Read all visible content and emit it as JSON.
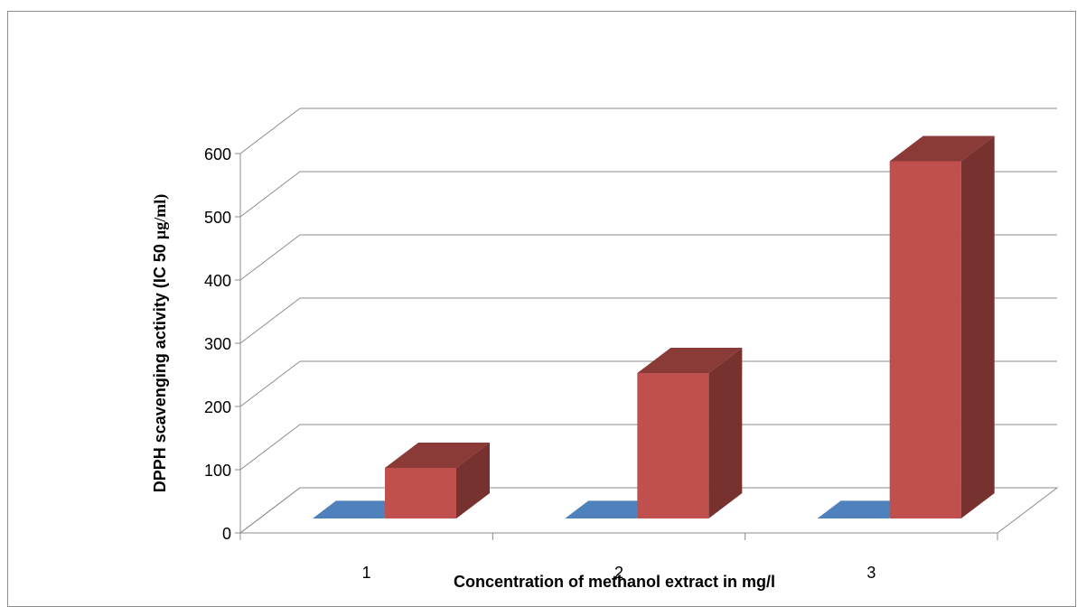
{
  "chart_data": {
    "type": "bar",
    "categories": [
      "1",
      "2",
      "3"
    ],
    "series": [
      {
        "values": [
          0,
          0,
          0
        ],
        "color": "#4f81bd"
      },
      {
        "values": [
          80,
          230,
          565
        ],
        "color": "#c0504d"
      }
    ],
    "xlabel": "Concentration of methanol extract in mg/l",
    "ylabel": "DPPH scavenging activity (IC 50 µg/ml)",
    "ylim": [
      0,
      600
    ],
    "yticks": [
      0,
      100,
      200,
      300,
      400,
      500,
      600
    ],
    "grid": true,
    "style": "3d-column"
  }
}
